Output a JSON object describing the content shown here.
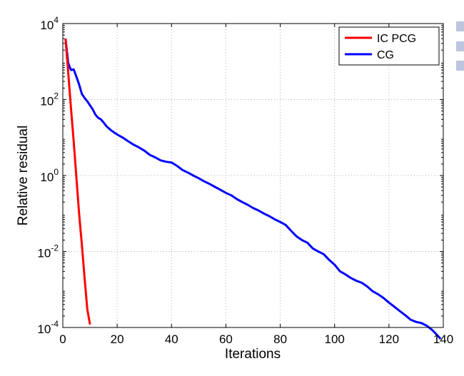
{
  "chart_data": {
    "type": "line",
    "xlabel": "Iterations",
    "ylabel": "Relative residual",
    "xlim": [
      0,
      140
    ],
    "ylim": [
      0.0001,
      10000
    ],
    "yscale": "log",
    "grid": true,
    "legend_position": "top-right",
    "x_ticks": [
      "0",
      "20",
      "40",
      "60",
      "80",
      "100",
      "120",
      "140"
    ],
    "y_ticks": [
      {
        "base": "10",
        "exp": "4"
      },
      {
        "base": "10",
        "exp": "2"
      },
      {
        "base": "10",
        "exp": "0"
      },
      {
        "base": "10",
        "exp": "-2"
      },
      {
        "base": "10",
        "exp": "-4"
      }
    ],
    "series": [
      {
        "name": "IC PCG",
        "color": "#ff0000",
        "x": [
          1,
          2,
          3,
          4,
          5,
          6,
          7,
          8,
          9,
          10
        ],
        "y": [
          4000,
          500,
          60,
          8,
          0.9,
          0.1,
          0.015,
          0.002,
          0.0003,
          0.00012
        ]
      },
      {
        "name": "CG",
        "color": "#0000ff",
        "x": [
          1,
          2,
          3,
          4,
          5,
          6,
          7,
          8,
          9,
          10,
          11,
          12,
          13,
          14,
          15,
          16,
          18,
          20,
          22,
          24,
          26,
          28,
          30,
          32,
          34,
          36,
          38,
          40,
          42,
          44,
          46,
          48,
          50,
          52,
          54,
          56,
          58,
          60,
          62,
          64,
          66,
          68,
          70,
          72,
          74,
          76,
          78,
          80,
          82,
          84,
          86,
          88,
          90,
          92,
          94,
          96,
          98,
          100,
          102,
          104,
          106,
          108,
          110,
          112,
          114,
          116,
          118,
          120,
          122,
          124,
          126,
          128,
          130,
          132,
          134,
          136,
          138,
          139
        ],
        "y": [
          4000,
          900,
          600,
          620,
          400,
          250,
          140,
          110,
          90,
          70,
          55,
          40,
          33,
          30,
          25,
          20,
          15,
          12,
          10,
          8,
          6.5,
          5.5,
          4.5,
          3.5,
          3,
          2.5,
          2.3,
          2.2,
          1.8,
          1.4,
          1.2,
          1.0,
          0.85,
          0.7,
          0.6,
          0.5,
          0.42,
          0.35,
          0.3,
          0.24,
          0.2,
          0.17,
          0.14,
          0.12,
          0.1,
          0.085,
          0.07,
          0.06,
          0.05,
          0.035,
          0.025,
          0.02,
          0.017,
          0.012,
          0.01,
          0.0085,
          0.006,
          0.0045,
          0.003,
          0.0025,
          0.002,
          0.0017,
          0.0015,
          0.0012,
          0.0009,
          0.00075,
          0.0006,
          0.00045,
          0.00035,
          0.00027,
          0.00021,
          0.00016,
          0.00014,
          0.00013,
          0.00011,
          8.5e-05,
          6e-05,
          5e-05
        ]
      }
    ]
  }
}
